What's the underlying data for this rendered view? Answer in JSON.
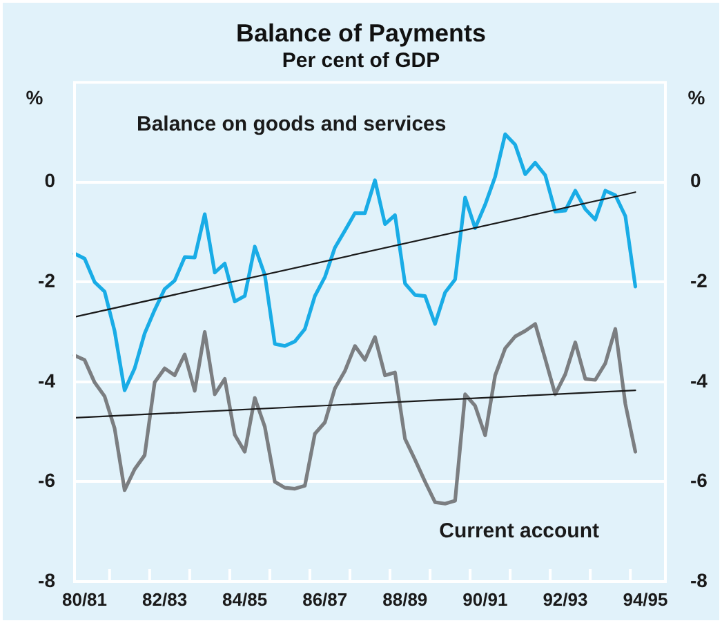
{
  "chart_data": {
    "type": "line",
    "title": "Balance of Payments",
    "subtitle": "Per cent of GDP",
    "ylabel": "%",
    "y2label": "%",
    "categories": [
      null,
      "80/81",
      null,
      null,
      null,
      null,
      null,
      null,
      null,
      "82/83",
      null,
      null,
      null,
      null,
      null,
      null,
      null,
      "84/85",
      null,
      null,
      null,
      null,
      null,
      null,
      null,
      "86/87",
      null,
      null,
      null,
      null,
      null,
      null,
      null,
      "88/89",
      null,
      null,
      null,
      null,
      null,
      null,
      null,
      "90/91",
      null,
      null,
      null,
      null,
      null,
      null,
      null,
      "92/93",
      null,
      null,
      null,
      null,
      null,
      null,
      null,
      "94/95",
      null,
      null
    ],
    "series": [
      {
        "name": "Balance on goods and services",
        "color": "#19ace6",
        "values": [
          -1.43,
          -1.53,
          -2.0,
          -2.19,
          -2.98,
          -4.17,
          -3.73,
          -3.03,
          -2.56,
          -2.14,
          -1.97,
          -1.5,
          -1.51,
          -0.64,
          -1.81,
          -1.63,
          -2.39,
          -2.28,
          -1.29,
          -1.86,
          -3.24,
          -3.28,
          -3.19,
          -2.94,
          -2.28,
          -1.9,
          -1.31,
          -0.97,
          -0.62,
          -0.62,
          0.04,
          -0.84,
          -0.66,
          -2.03,
          -2.26,
          -2.28,
          -2.84,
          -2.21,
          -1.95,
          -0.31,
          -0.92,
          -0.45,
          0.11,
          0.96,
          0.75,
          0.16,
          0.39,
          0.14,
          -0.59,
          -0.57,
          -0.17,
          -0.54,
          -0.75,
          -0.17,
          -0.26,
          -0.68,
          -2.09,
          null,
          null,
          null
        ]
      },
      {
        "name": "Current account",
        "color": "#7b7e81",
        "values": [
          -3.47,
          -3.56,
          -4.01,
          -4.29,
          -4.93,
          -6.17,
          -5.75,
          -5.47,
          -4.01,
          -3.73,
          -3.87,
          -3.45,
          -4.18,
          -3.0,
          -4.25,
          -3.94,
          -5.06,
          -5.4,
          -4.32,
          -4.9,
          -6.0,
          -6.12,
          -6.14,
          -6.08,
          -5.04,
          -4.81,
          -4.13,
          -3.78,
          -3.28,
          -3.56,
          -3.1,
          -3.87,
          -3.81,
          -5.14,
          -5.56,
          -6.0,
          -6.41,
          -6.44,
          -6.38,
          -4.25,
          -4.48,
          -5.07,
          -3.87,
          -3.33,
          -3.09,
          -2.98,
          -2.84,
          -3.54,
          -4.25,
          -3.85,
          -3.21,
          -3.94,
          -3.96,
          -3.63,
          -2.94,
          -4.44,
          -5.4,
          null,
          null,
          null
        ]
      },
      {
        "type": "line",
        "color": "#1a1a1a",
        "values": [
          -2.7,
          null,
          null,
          null,
          null,
          null,
          null,
          null,
          null,
          null,
          null,
          null,
          null,
          null,
          null,
          null,
          null,
          null,
          null,
          null,
          null,
          null,
          null,
          null,
          null,
          null,
          null,
          null,
          null,
          null,
          null,
          null,
          null,
          null,
          null,
          null,
          null,
          null,
          null,
          null,
          null,
          null,
          null,
          null,
          null,
          null,
          null,
          null,
          null,
          null,
          null,
          null,
          null,
          null,
          null,
          null,
          -0.2,
          null,
          null,
          null
        ]
      },
      {
        "type": "line",
        "color": "#1a1a1a",
        "values": [
          -4.72,
          null,
          null,
          null,
          null,
          null,
          null,
          null,
          null,
          null,
          null,
          null,
          null,
          null,
          null,
          null,
          null,
          null,
          null,
          null,
          null,
          null,
          null,
          null,
          null,
          null,
          null,
          null,
          null,
          null,
          null,
          null,
          null,
          null,
          null,
          null,
          null,
          null,
          null,
          null,
          null,
          null,
          null,
          null,
          null,
          null,
          null,
          null,
          null,
          null,
          null,
          null,
          null,
          null,
          null,
          null,
          -4.17,
          null,
          null,
          null
        ]
      }
    ],
    "ylim": [
      -8,
      2
    ],
    "yticks": [
      -8,
      -6,
      -4,
      -2,
      0
    ],
    "y2lim": [
      -8,
      2
    ],
    "y2ticks": [
      -8,
      -6,
      -4,
      -2,
      0
    ],
    "grid": "y",
    "legend": false,
    "marker": "none",
    "line_style": "solid"
  }
}
